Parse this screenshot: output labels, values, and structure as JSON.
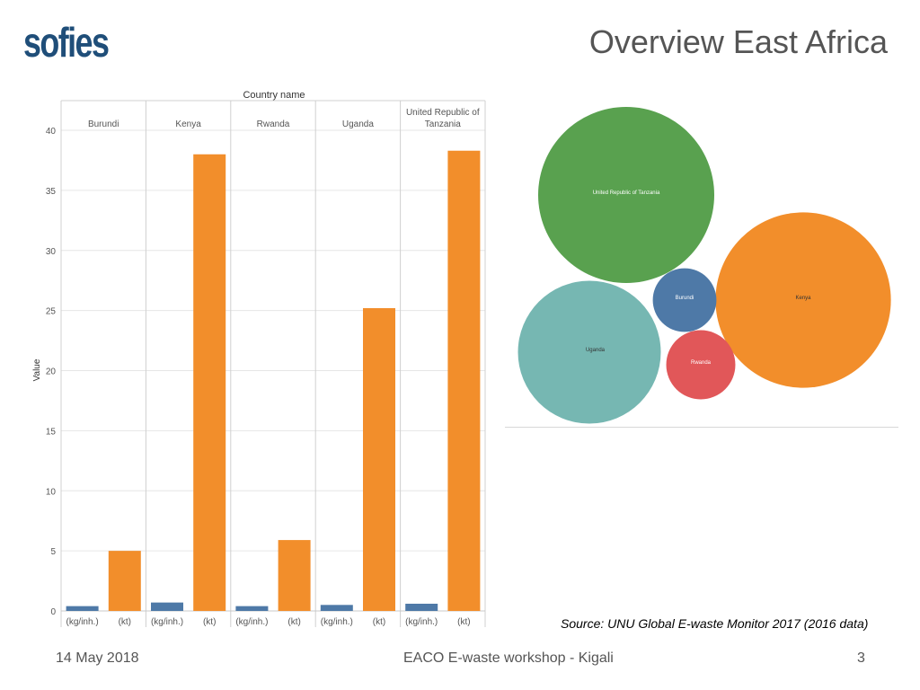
{
  "header": {
    "logo_text": "sofies",
    "title": "Overview East Africa"
  },
  "colors": {
    "brand": "#1f4e79",
    "bar_kg_inh": "#4e79a7",
    "bar_kt": "#f28e2b",
    "grid": "#e6e6e6",
    "axis_text": "#555555"
  },
  "chart_data": [
    {
      "type": "bar",
      "title": "Country name",
      "ylabel": "Value",
      "ylim": [
        0,
        40
      ],
      "yticks": [
        0,
        5,
        10,
        15,
        20,
        25,
        30,
        35,
        40
      ],
      "grid": true,
      "groups": [
        {
          "label": "Burundi",
          "bars": [
            {
              "measure": "(kg/inh.)",
              "value": 0.4
            },
            {
              "measure": "(kt)",
              "value": 5.0
            }
          ]
        },
        {
          "label": "Kenya",
          "bars": [
            {
              "measure": "(kg/inh.)",
              "value": 0.7
            },
            {
              "measure": "(kt)",
              "value": 38.0
            }
          ]
        },
        {
          "label": "Rwanda",
          "bars": [
            {
              "measure": "(kg/inh.)",
              "value": 0.4
            },
            {
              "measure": "(kt)",
              "value": 5.9
            }
          ]
        },
        {
          "label": "Uganda",
          "bars": [
            {
              "measure": "(kg/inh.)",
              "value": 0.5
            },
            {
              "measure": "(kt)",
              "value": 25.2
            }
          ]
        },
        {
          "label": "United Republic of Tanzania",
          "label_lines": [
            "United Republic of",
            "Tanzania"
          ],
          "bars": [
            {
              "measure": "(kg/inh.)",
              "value": 0.6
            },
            {
              "measure": "(kt)",
              "value": 38.3
            }
          ]
        }
      ]
    },
    {
      "type": "bubble",
      "items": [
        {
          "label": "United Republic of Tanzania",
          "size": 38.3,
          "color": "#59a14f"
        },
        {
          "label": "Kenya",
          "size": 38.0,
          "color": "#f28e2b"
        },
        {
          "label": "Uganda",
          "size": 25.2,
          "color": "#76b7b2"
        },
        {
          "label": "Burundi",
          "size": 5.0,
          "color": "#4e79a7"
        },
        {
          "label": "Rwanda",
          "size": 5.9,
          "color": "#e15759"
        }
      ]
    }
  ],
  "source_note": "Source: UNU Global E-waste Monitor 2017 (2016 data)",
  "footer": {
    "date": "14 May 2018",
    "event": "EACO E-waste workshop - Kigali",
    "page": "3"
  }
}
